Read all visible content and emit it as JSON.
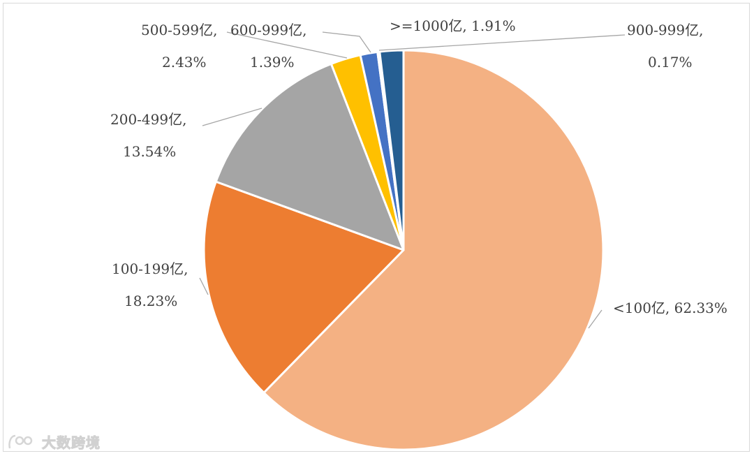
{
  "chart_data": {
    "type": "pie",
    "slices": [
      {
        "name": "<100亿",
        "value": 62.33,
        "label_line1": "<100亿, 62.33%",
        "label_line2": "",
        "color": "#F4B183"
      },
      {
        "name": "100-199亿",
        "value": 18.23,
        "label_line1": "100-199亿,",
        "label_line2": "18.23%",
        "color": "#ED7D31"
      },
      {
        "name": "200-499亿",
        "value": 13.54,
        "label_line1": "200-499亿,",
        "label_line2": "13.54%",
        "color": "#A5A5A5"
      },
      {
        "name": "500-599亿",
        "value": 2.43,
        "label_line1": "500-599亿,",
        "label_line2": "2.43%",
        "color": "#FFC000"
      },
      {
        "name": "600-999亿",
        "value": 1.39,
        "label_line1": "600-999亿,",
        "label_line2": "1.39%",
        "color": "#4472C4"
      },
      {
        "name": "900-999亿",
        "value": 0.17,
        "label_line1": "900-999亿,",
        "label_line2": "0.17%",
        "color": "#70AD47"
      },
      {
        "name": ">=1000亿",
        "value": 1.91,
        "label_line1": ">=1000亿, 1.91%",
        "label_line2": "",
        "color": "#255E91"
      }
    ],
    "start_angle_deg": 0,
    "direction": "clockwise",
    "legend": "none",
    "leader_line_color": "#A6A6A6",
    "slice_border_color": "#FFFFFF"
  },
  "watermark": {
    "text": "大数跨境",
    "icon": "logo-icon"
  }
}
